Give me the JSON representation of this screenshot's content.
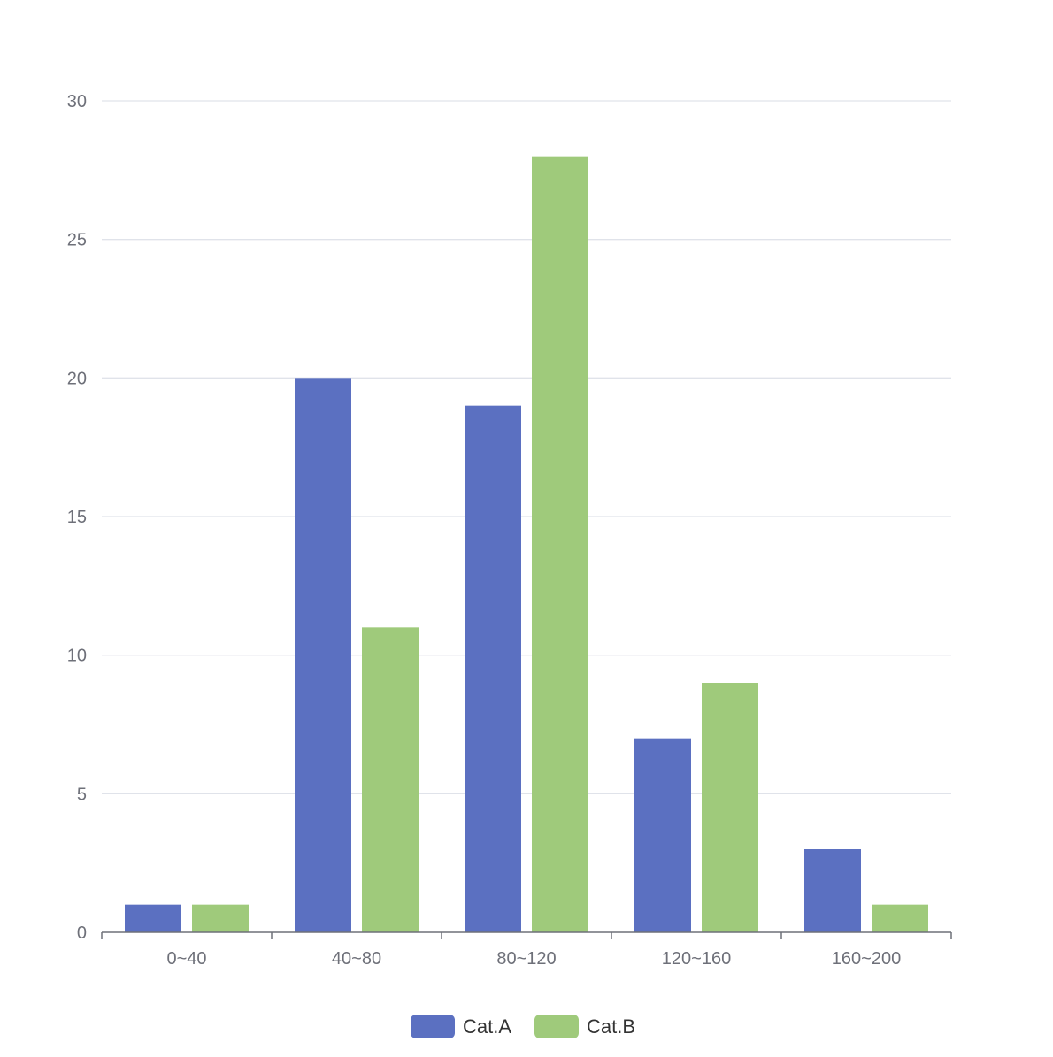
{
  "chart_data": {
    "type": "bar",
    "title": "",
    "xlabel": "",
    "ylabel": "",
    "categories": [
      "0~40",
      "40~80",
      "80~120",
      "120~160",
      "160~200"
    ],
    "series": [
      {
        "name": "Cat.A",
        "color": "#5b70c1",
        "values": [
          1,
          20,
          19,
          7,
          3
        ]
      },
      {
        "name": "Cat.B",
        "color": "#9fca7b",
        "values": [
          1,
          11,
          28,
          9,
          1
        ]
      }
    ],
    "ylim": [
      0,
      30
    ],
    "yticks": [
      0,
      5,
      10,
      15,
      20,
      25,
      30
    ],
    "grid": true,
    "legend": "bottom-center"
  }
}
